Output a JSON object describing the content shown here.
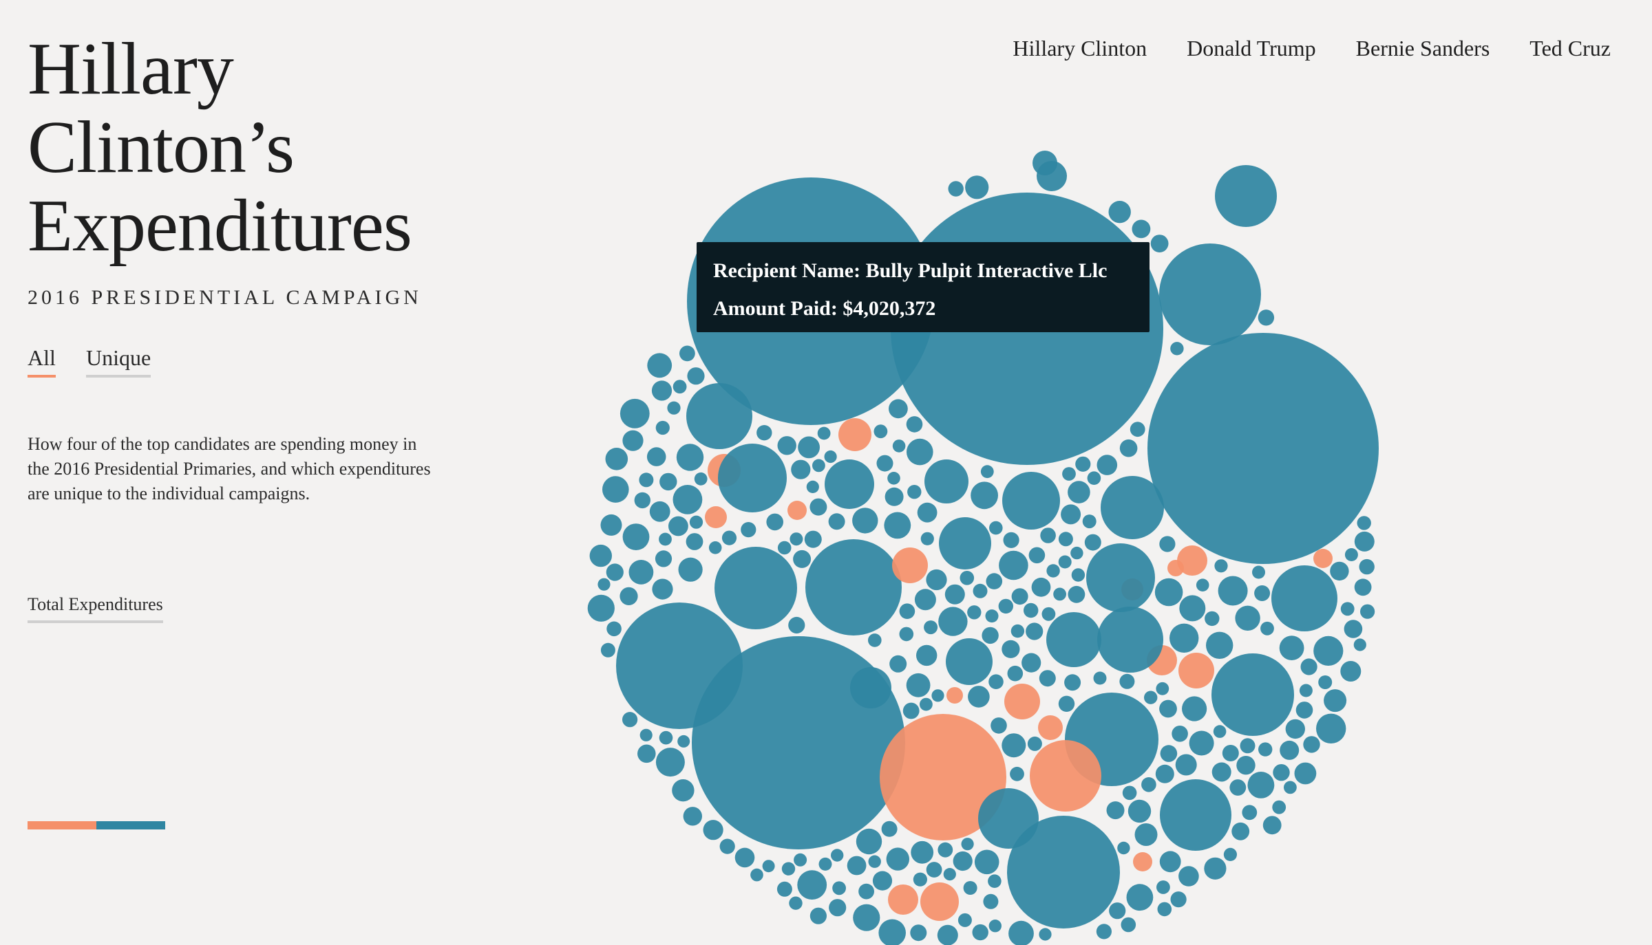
{
  "title_lines": [
    "Hillary",
    "Clinton’s",
    "Expenditures"
  ],
  "subtitle": "2016 PRESIDENTIAL CAMPAIGN",
  "toggles": {
    "all": "All",
    "unique": "Unique"
  },
  "description": "How four of the top candidates are spending money in the 2016 Presidential Primaries, and which expenditures are unique to the individual campaigns.",
  "total_link": "Total Expenditures",
  "nav": [
    "Hillary Clinton",
    "Donald Trump",
    "Bernie Sanders",
    "Ted Cruz"
  ],
  "tooltip": {
    "recipient": "Recipient Name: Bully Pulpit Interactive Llc",
    "amount": "Amount Paid: $4,020,372"
  },
  "colors": {
    "shared": "#2f86a2",
    "unique": "#f5906a",
    "background": "#f3f2f1",
    "tooltip_bg": "#0b1b22"
  }
}
